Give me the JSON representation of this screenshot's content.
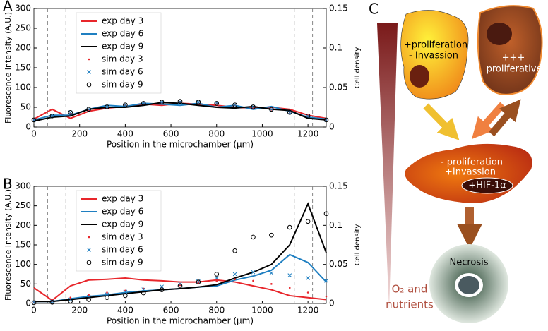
{
  "chart_data": [
    {
      "type": "line",
      "panel": "A",
      "xlabel": "Position in the microchamber (μm)",
      "ylabel": "Fluorescence intensity (A.U.)",
      "y2label": "Cell density",
      "xlim": [
        0,
        1280
      ],
      "xticks": [
        0,
        200,
        400,
        600,
        800,
        1000,
        1200
      ],
      "ylim": [
        0,
        300
      ],
      "yticks": [
        0,
        50,
        100,
        150,
        200,
        250,
        300
      ],
      "y2lim": [
        0,
        0.15
      ],
      "y2ticks": [
        0,
        0.05,
        0.1,
        0.15
      ],
      "vlines": [
        60,
        140,
        1140,
        1220
      ],
      "legend": "upper left",
      "x": [
        0,
        80,
        160,
        240,
        320,
        400,
        480,
        560,
        640,
        720,
        800,
        880,
        960,
        1040,
        1120,
        1200,
        1280
      ],
      "series": [
        {
          "name": "exp day 3",
          "color": "#e8262b",
          "values": [
            20,
            45,
            22,
            40,
            48,
            52,
            58,
            55,
            60,
            58,
            55,
            50,
            48,
            50,
            45,
            30,
            22
          ]
        },
        {
          "name": "exp day 6",
          "color": "#1f7fc1",
          "values": [
            18,
            30,
            30,
            45,
            55,
            52,
            60,
            58,
            55,
            60,
            50,
            55,
            45,
            52,
            40,
            25,
            20
          ]
        },
        {
          "name": "exp day 9",
          "color": "#000000",
          "values": [
            15,
            25,
            28,
            45,
            50,
            50,
            55,
            62,
            60,
            55,
            50,
            48,
            52,
            45,
            42,
            22,
            18
          ]
        },
        {
          "name": "sim day 3",
          "color": "#e8262b",
          "marker": "dot",
          "axis": "y2",
          "values": [
            0.009,
            0.014,
            0.018,
            0.022,
            0.025,
            0.028,
            0.03,
            0.031,
            0.032,
            0.031,
            0.03,
            0.028,
            0.025,
            0.022,
            0.018,
            0.014,
            0.009
          ]
        },
        {
          "name": "sim day 6",
          "color": "#1f7fc1",
          "marker": "x",
          "axis": "y2",
          "values": [
            0.009,
            0.014,
            0.0185,
            0.0225,
            0.0255,
            0.028,
            0.03,
            0.0315,
            0.032,
            0.0315,
            0.03,
            0.028,
            0.0255,
            0.0225,
            0.0185,
            0.014,
            0.009
          ]
        },
        {
          "name": "sim day 9",
          "color": "#000000",
          "marker": "circle",
          "axis": "y2",
          "values": [
            0.009,
            0.014,
            0.0185,
            0.0225,
            0.0255,
            0.028,
            0.03,
            0.0315,
            0.0325,
            0.0315,
            0.03,
            0.028,
            0.0255,
            0.0225,
            0.0185,
            0.014,
            0.009
          ]
        }
      ]
    },
    {
      "type": "line",
      "panel": "B",
      "xlabel": "Position in the microchamber (μm)",
      "ylabel": "Fluorescence intensity (A.U.)",
      "y2label": "Cell density",
      "xlim": [
        0,
        1280
      ],
      "xticks": [
        0,
        200,
        400,
        600,
        800,
        1000,
        1200
      ],
      "ylim": [
        0,
        300
      ],
      "yticks": [
        0,
        50,
        100,
        150,
        200,
        250,
        300
      ],
      "y2lim": [
        0,
        0.15
      ],
      "y2ticks": [
        0,
        0.05,
        0.1,
        0.15
      ],
      "vlines": [
        60,
        140,
        1140,
        1220
      ],
      "legend": "upper left",
      "x": [
        0,
        80,
        160,
        240,
        320,
        400,
        480,
        560,
        640,
        720,
        800,
        880,
        960,
        1040,
        1120,
        1200,
        1280
      ],
      "series": [
        {
          "name": "exp day 3",
          "color": "#e8262b",
          "values": [
            40,
            8,
            45,
            60,
            62,
            65,
            60,
            58,
            55,
            55,
            60,
            55,
            45,
            35,
            20,
            15,
            10
          ]
        },
        {
          "name": "exp day 6",
          "color": "#1f7fc1",
          "values": [
            5,
            5,
            12,
            18,
            22,
            28,
            32,
            35,
            38,
            42,
            45,
            60,
            70,
            85,
            125,
            105,
            55
          ]
        },
        {
          "name": "exp day 9",
          "color": "#000000",
          "values": [
            5,
            5,
            10,
            15,
            20,
            25,
            30,
            35,
            38,
            42,
            48,
            65,
            80,
            100,
            150,
            255,
            130
          ]
        },
        {
          "name": "sim day 3",
          "color": "#e8262b",
          "marker": "dot",
          "axis": "y2",
          "values": [
            0.0015,
            0.0025,
            0.0075,
            0.011,
            0.014,
            0.0165,
            0.019,
            0.021,
            0.0235,
            0.026,
            0.0285,
            0.031,
            0.029,
            0.025,
            0.02,
            0.014,
            0.009
          ]
        },
        {
          "name": "sim day 6",
          "color": "#1f7fc1",
          "marker": "x",
          "axis": "y2",
          "values": [
            0.0015,
            0.0025,
            0.005,
            0.0085,
            0.0115,
            0.015,
            0.018,
            0.0215,
            0.025,
            0.0285,
            0.0325,
            0.0375,
            0.04,
            0.039,
            0.036,
            0.0325,
            0.029
          ]
        },
        {
          "name": "sim day 9",
          "color": "#000000",
          "marker": "circle",
          "axis": "y2",
          "values": [
            0.001,
            0.0015,
            0.003,
            0.005,
            0.0075,
            0.01,
            0.0135,
            0.0175,
            0.0225,
            0.0275,
            0.0375,
            0.0675,
            0.085,
            0.0875,
            0.0975,
            0.105,
            0.115
          ]
        }
      ]
    }
  ],
  "diagram": {
    "panel": "C",
    "cell1": [
      "+proliferation",
      "- Invassion"
    ],
    "cell2": [
      "+++",
      "proliferative"
    ],
    "cell3": [
      "- proliferation",
      "+Invassion"
    ],
    "hif": "+HIF-1α",
    "necrosis": "Necrosis",
    "gradient": [
      "O₂ and",
      "nutrients"
    ]
  }
}
